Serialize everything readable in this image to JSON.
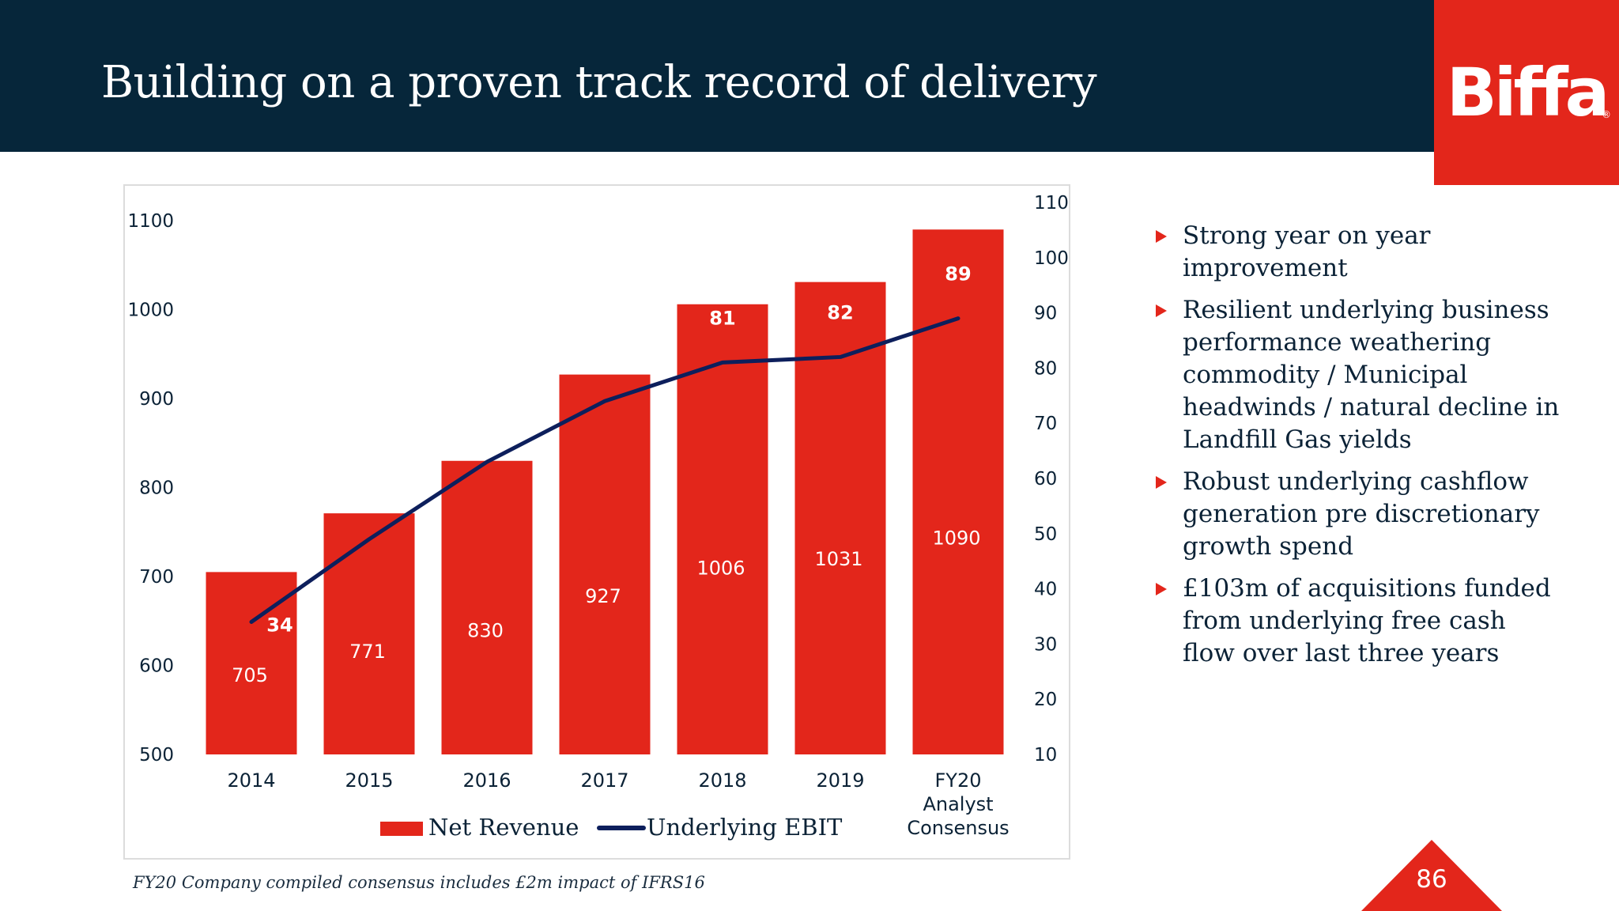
{
  "slide": {
    "title": "Building on a proven track record of delivery",
    "logo_text": "Biffa",
    "logo_registered": "®",
    "footnote": "FY20 Company compiled consensus includes £2m impact of IFRS16",
    "page_number": "86",
    "bullets": [
      "Strong year on year improvement",
      "Resilient underlying business performance weathering commodity / Municipal headwinds / natural decline in Landfill Gas yields",
      "Robust underlying cashflow generation pre discretionary growth spend",
      "£103m of acquisitions funded from underlying free cash flow over last three years"
    ]
  },
  "colors": {
    "header_bg": "#06263a",
    "brand_red": "#e3261b",
    "line_navy": "#0d1f5c",
    "text_dark": "#0b2236"
  },
  "chart_data": {
    "type": "bar",
    "categories": [
      "2014",
      "2015",
      "2016",
      "2017",
      "2018",
      "2019",
      "FY20\nAnalyst\nConsensus"
    ],
    "series": [
      {
        "name": "Net Revenue",
        "type": "bar",
        "axis": "left",
        "values": [
          705,
          771,
          830,
          927,
          1006,
          1031,
          1090
        ]
      },
      {
        "name": "Underlying EBIT",
        "type": "line",
        "axis": "right",
        "values": [
          34,
          49,
          63,
          74,
          81,
          82,
          89
        ]
      }
    ],
    "y_left": {
      "min": 500,
      "max": 1100,
      "ticks": [
        500,
        600,
        700,
        800,
        900,
        1000,
        1100
      ]
    },
    "y_right": {
      "min": 10,
      "max": 110,
      "ticks": [
        10,
        20,
        30,
        40,
        50,
        60,
        70,
        80,
        90,
        100,
        110
      ]
    },
    "legend_position": "bottom-center",
    "grid": false
  }
}
